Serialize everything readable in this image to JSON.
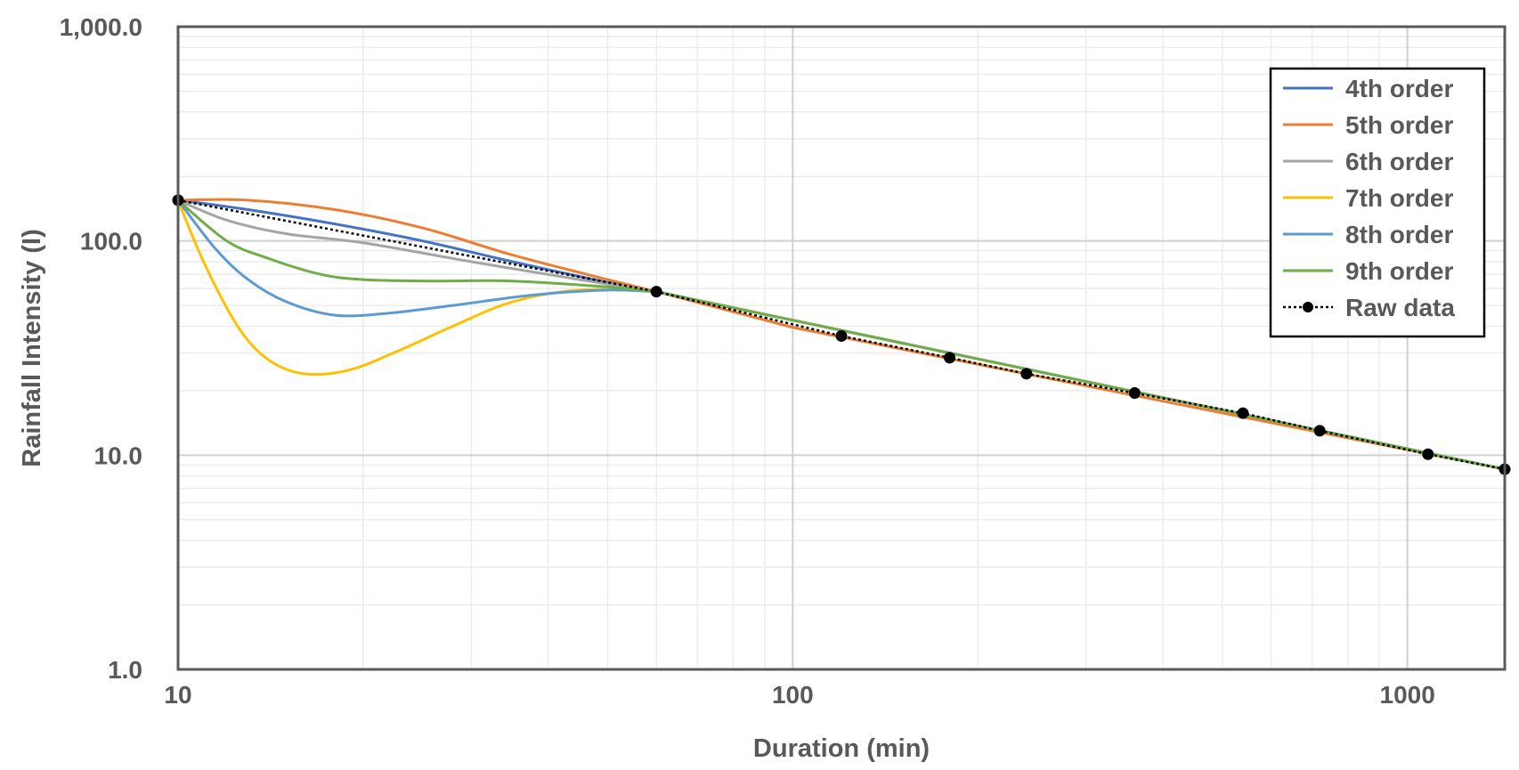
{
  "chart_data": {
    "type": "line",
    "title": "",
    "xlabel": "Duration (min)",
    "ylabel": "Rainfall Intensity (I)",
    "x_scale": "log",
    "y_scale": "log",
    "xlim": [
      10,
      1440
    ],
    "ylim": [
      1,
      1000
    ],
    "x_tick_labels": [
      {
        "value": 10,
        "label": "10"
      },
      {
        "value": 100,
        "label": "100"
      },
      {
        "value": 1000,
        "label": "1000"
      }
    ],
    "y_tick_labels": [
      {
        "value": 1,
        "label": "1.0"
      },
      {
        "value": 10,
        "label": "10.0"
      },
      {
        "value": 100,
        "label": "100.0"
      },
      {
        "value": 1000,
        "label": "1,000.0"
      }
    ],
    "grid": true,
    "legend_position": "top-right",
    "series": [
      {
        "name": "4th order",
        "color": "#4472C4",
        "x": [
          10,
          13,
          18,
          25,
          35,
          50,
          60
        ],
        "y": [
          155,
          140,
          120,
          100,
          80,
          64,
          58
        ]
      },
      {
        "name": "5th order",
        "color": "#ED7D31",
        "x": [
          10,
          13,
          18,
          25,
          35,
          50,
          60
        ],
        "y": [
          155,
          155,
          140,
          115,
          86,
          66,
          58
        ]
      },
      {
        "name": "6th order",
        "color": "#A5A5A5",
        "x": [
          10,
          12,
          15,
          20,
          30,
          45,
          60
        ],
        "y": [
          155,
          125,
          108,
          98,
          80,
          66,
          58
        ]
      },
      {
        "name": "7th order",
        "color": "#FFC000",
        "x": [
          10,
          11,
          12.5,
          14,
          16,
          19,
          23,
          28,
          35,
          45,
          60
        ],
        "y": [
          155,
          80,
          40,
          28,
          24,
          25,
          31,
          40,
          52,
          59,
          58
        ]
      },
      {
        "name": "8th order",
        "color": "#5B9BD5",
        "x": [
          10,
          11.5,
          13,
          15,
          18,
          22,
          28,
          38,
          50,
          60
        ],
        "y": [
          155,
          92,
          66,
          52,
          45,
          46,
          50,
          56,
          59,
          58
        ]
      },
      {
        "name": "9th order",
        "color": "#70AD47",
        "x": [
          10,
          12,
          14,
          17,
          20,
          26,
          35,
          50,
          60
        ],
        "y": [
          155,
          100,
          83,
          70,
          66,
          65,
          65,
          61,
          58
        ]
      },
      {
        "name": "Raw data",
        "color": "#000000",
        "x": [
          10,
          60,
          120,
          180,
          240,
          360,
          540,
          720,
          1080,
          1440
        ],
        "y": [
          155,
          58,
          36,
          28.5,
          24,
          19.5,
          15.7,
          13,
          10.1,
          8.6
        ]
      }
    ],
    "extended_series": {
      "4th order": {
        "x": [
          60,
          1440
        ],
        "y": [
          58,
          8.6
        ]
      },
      "5th order": {
        "x": [
          60,
          100,
          1440
        ],
        "y": [
          58,
          39.5,
          8.6
        ]
      },
      "6th order": {
        "x": [
          60,
          1440
        ],
        "y": [
          58,
          8.6
        ]
      },
      "7th order": {
        "x": [
          60,
          1440
        ],
        "y": [
          58,
          8.6
        ]
      },
      "8th order": {
        "x": [
          60,
          1440
        ],
        "y": [
          58,
          8.6
        ]
      },
      "9th order": {
        "x": [
          60,
          1440
        ],
        "y": [
          58,
          8.6
        ]
      }
    }
  }
}
